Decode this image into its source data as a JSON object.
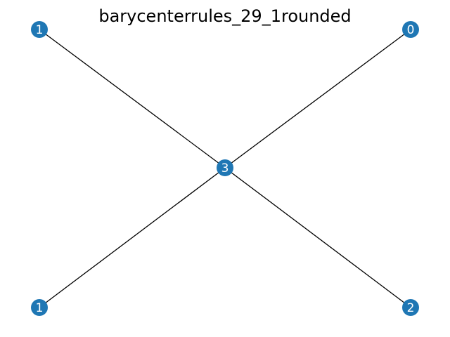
{
  "graph": {
    "title": "barycenterrules_29_1rounded",
    "node_color": "#1f77b4",
    "label_color": "#ffffff",
    "edge_color": "#000000",
    "nodes": [
      {
        "id": "top-left",
        "label": "1"
      },
      {
        "id": "top-right",
        "label": "0"
      },
      {
        "id": "center",
        "label": "3"
      },
      {
        "id": "bottom-left",
        "label": "1"
      },
      {
        "id": "bottom-right",
        "label": "2"
      }
    ],
    "edges": [
      {
        "from": "top-left",
        "to": "center"
      },
      {
        "from": "top-right",
        "to": "center"
      },
      {
        "from": "center",
        "to": "bottom-left"
      },
      {
        "from": "center",
        "to": "bottom-right"
      }
    ]
  }
}
